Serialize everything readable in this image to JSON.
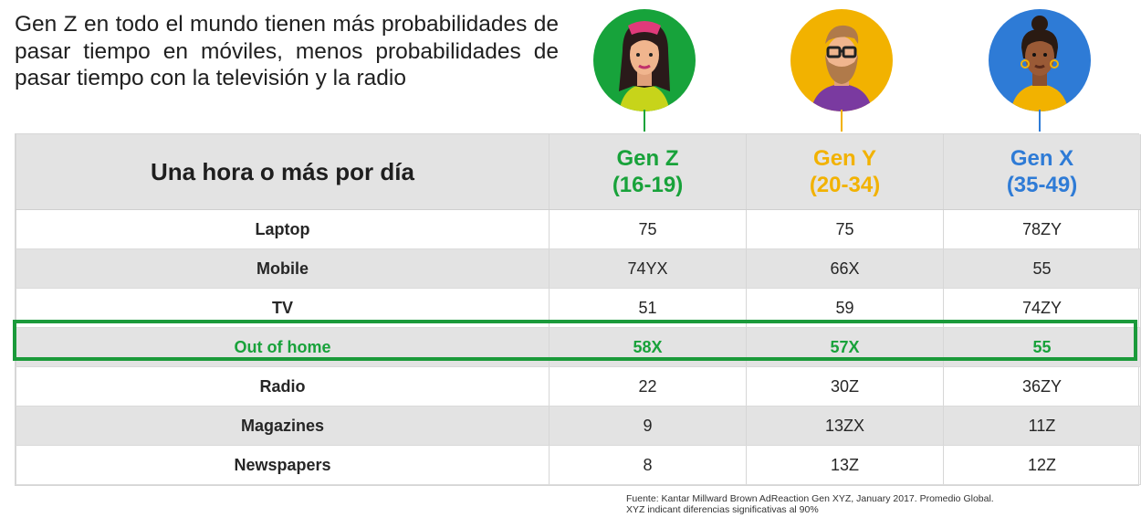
{
  "headline": "Gen Z en todo el mundo tienen más probabilidades de pasar tiempo en móviles, menos probabilidades de pasar tiempo con la televisión y la radio",
  "colors": {
    "gen_z": "#18a23a",
    "gen_y": "#f2b200",
    "gen_x": "#2e7bd6",
    "highlight_border": "#1a9a3a",
    "row_shade": "#e3e3e3"
  },
  "avatars": [
    {
      "icon": "woman-avatar-icon",
      "circle": "#17a33b"
    },
    {
      "icon": "bearded-man-avatar-icon",
      "circle": "#f2b200"
    },
    {
      "icon": "curly-hair-woman-avatar-icon",
      "circle": "#2e7bd6"
    }
  ],
  "chart_data": {
    "type": "table",
    "header": "Una hora o más por día",
    "columns": [
      {
        "name": "Gen Z",
        "range": "(16-19)"
      },
      {
        "name": "Gen Y",
        "range": "(20-34)"
      },
      {
        "name": "Gen X",
        "range": "(35-49)"
      }
    ],
    "rows": [
      {
        "label": "Laptop",
        "values": [
          "75",
          "75",
          "78ZY"
        ]
      },
      {
        "label": "Mobile",
        "values": [
          "74YX",
          "66X",
          "55"
        ]
      },
      {
        "label": "TV",
        "values": [
          "51",
          "59",
          "74ZY"
        ]
      },
      {
        "label": "Out of home",
        "values": [
          "58X",
          "57X",
          "55"
        ],
        "highlighted": true
      },
      {
        "label": "Radio",
        "values": [
          "22",
          "30Z",
          "36ZY"
        ]
      },
      {
        "label": "Magazines",
        "values": [
          "9",
          "13ZX",
          "11Z"
        ]
      },
      {
        "label": "Newspapers",
        "values": [
          "8",
          "13Z",
          "12Z"
        ]
      }
    ]
  },
  "footnote": {
    "line1": "Fuente: Kantar Millward Brown AdReaction Gen XYZ, January 2017.  Promedio Global.",
    "line2": "XYZ indicant diferencias significativas al 90%"
  }
}
